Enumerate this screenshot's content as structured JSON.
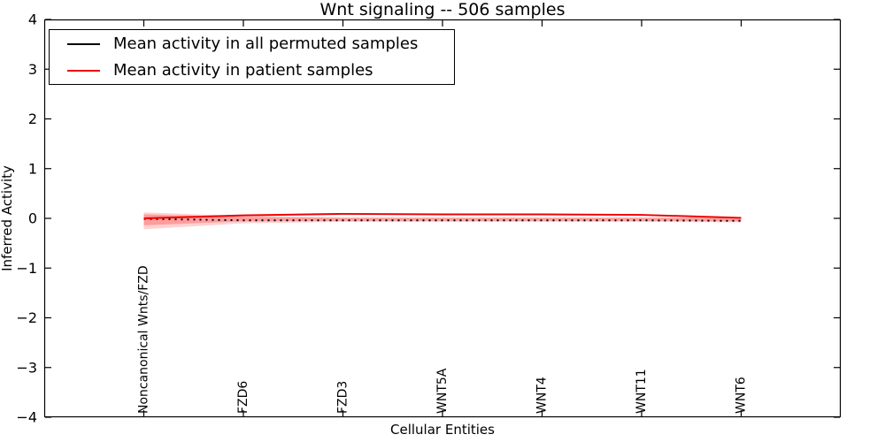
{
  "chart_data": {
    "type": "line",
    "title": "Wnt signaling -- 506 samples",
    "xlabel": "Cellular Entities",
    "ylabel": "Inferred Activity",
    "xlim": [
      -1,
      7
    ],
    "ylim": [
      -4,
      4
    ],
    "yticks": [
      -4,
      -3,
      -2,
      -1,
      0,
      1,
      2,
      3,
      4
    ],
    "grid": false,
    "categories": [
      "Noncanonical Wnts/FZD",
      "FZD6",
      "FZD3",
      "WNT5A",
      "WNT4",
      "WNT11",
      "WNT6"
    ],
    "x": [
      0,
      1,
      2,
      3,
      4,
      5,
      6
    ],
    "series": [
      {
        "name": "Mean activity in all permuted samples",
        "color": "#000000",
        "style": "dotted",
        "values": [
          -0.01,
          -0.04,
          -0.04,
          -0.04,
          -0.04,
          -0.04,
          -0.05
        ]
      },
      {
        "name": "Mean activity in patient samples",
        "color": "#ee0000",
        "style": "solid",
        "values": [
          0.0,
          0.06,
          0.09,
          0.08,
          0.08,
          0.07,
          0.01
        ]
      }
    ],
    "bands": [
      {
        "name": "patient-std-outer",
        "color": "#ff0000",
        "opacity": 0.18,
        "upper": [
          0.12,
          0.05,
          0.02,
          0.02,
          0.02,
          0.02,
          0.02
        ],
        "lower": [
          -0.22,
          -0.1,
          -0.07,
          -0.07,
          -0.07,
          -0.07,
          -0.08
        ]
      },
      {
        "name": "patient-std-inner",
        "color": "#ff0000",
        "opacity": 0.25,
        "upper": [
          0.08,
          0.03,
          0.01,
          0.01,
          0.01,
          0.01,
          0.01
        ],
        "lower": [
          -0.14,
          -0.06,
          -0.05,
          -0.05,
          -0.05,
          -0.05,
          -0.06
        ]
      }
    ],
    "legend": {
      "position": "upper-left",
      "entries": [
        {
          "label": "Mean activity in all permuted samples",
          "color": "#000000"
        },
        {
          "label": "Mean activity in patient samples",
          "color": "#ee0000"
        }
      ]
    }
  }
}
